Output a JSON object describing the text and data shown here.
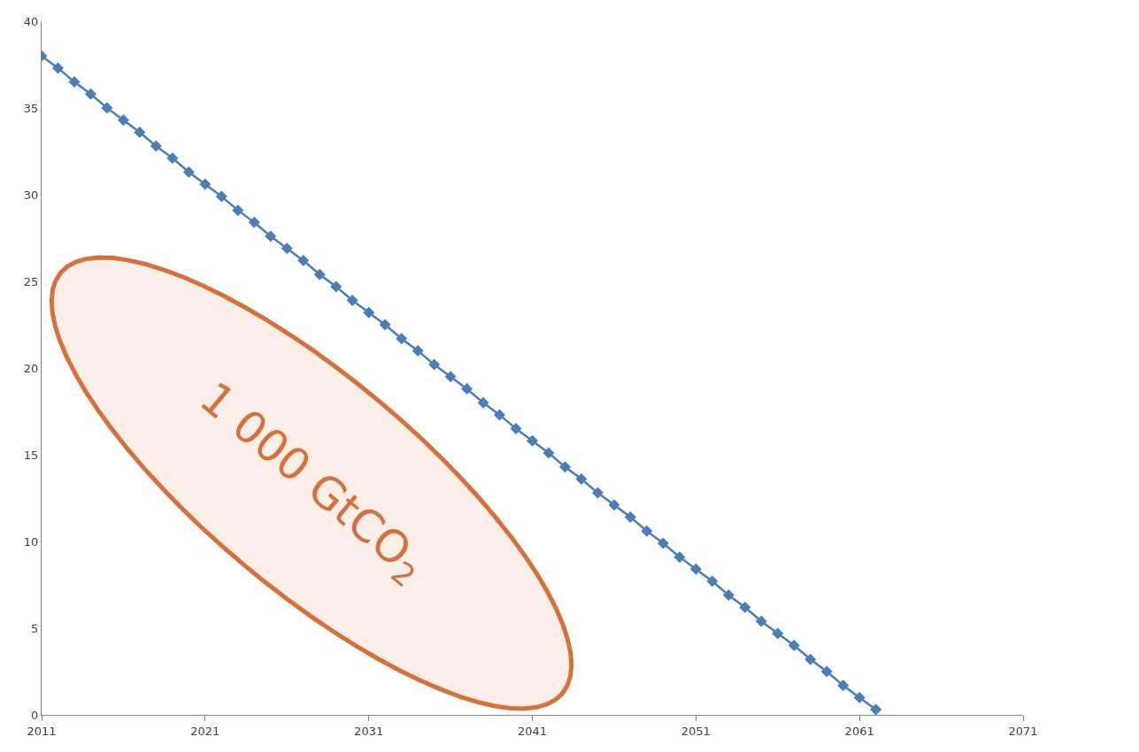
{
  "chart_data": {
    "type": "line",
    "x": [
      2011,
      2012,
      2013,
      2014,
      2015,
      2016,
      2017,
      2018,
      2019,
      2020,
      2021,
      2022,
      2023,
      2024,
      2025,
      2026,
      2027,
      2028,
      2029,
      2030,
      2031,
      2032,
      2033,
      2034,
      2035,
      2036,
      2037,
      2038,
      2039,
      2040,
      2041,
      2042,
      2043,
      2044,
      2045,
      2046,
      2047,
      2048,
      2049,
      2050,
      2051,
      2052,
      2053,
      2054,
      2055,
      2056,
      2057,
      2058,
      2059,
      2060,
      2061,
      2062
    ],
    "series": [
      {
        "color": "#4a7ebb",
        "values": [
          38.0,
          37.3,
          36.5,
          35.8,
          35.0,
          34.3,
          33.6,
          32.8,
          32.1,
          31.3,
          30.6,
          29.9,
          29.1,
          28.4,
          27.6,
          26.9,
          26.2,
          25.4,
          24.7,
          23.9,
          23.2,
          22.5,
          21.7,
          21.0,
          20.2,
          19.5,
          18.8,
          18.0,
          17.3,
          16.5,
          15.8,
          15.1,
          14.3,
          13.6,
          12.8,
          12.1,
          11.4,
          10.6,
          9.9,
          9.1,
          8.4,
          7.7,
          6.9,
          6.2,
          5.4,
          4.7,
          4.0,
          3.2,
          2.5,
          1.7,
          1.0,
          0.3
        ]
      }
    ],
    "xlim": [
      2011,
      2071
    ],
    "xticks": [
      2011,
      2021,
      2031,
      2041,
      2051,
      2061,
      2071
    ],
    "ylim": [
      0,
      40
    ],
    "yticks": [
      0,
      5,
      10,
      15,
      20,
      25,
      30,
      35,
      40
    ],
    "annotations": [
      "1 000 GtCO$_{2}$"
    ],
    "marker": "diamond",
    "line_style": "solid"
  }
}
